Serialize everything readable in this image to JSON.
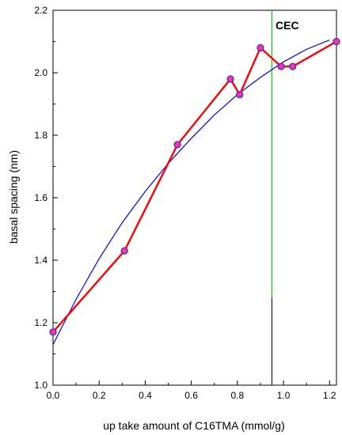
{
  "chart_data": {
    "type": "line",
    "title": "",
    "xlabel": "up take amount of C16TMA (mmol/g)",
    "ylabel": "basal spacing (nm)",
    "xlim": [
      0.0,
      1.23
    ],
    "ylim": [
      1.0,
      2.2
    ],
    "x_ticks": [
      "0.0",
      "0.2",
      "0.4",
      "0.6",
      "0.8",
      "1.0",
      "1.2"
    ],
    "y_ticks": [
      "1.0",
      "1.2",
      "1.4",
      "1.6",
      "1.8",
      "2.0",
      "2.2"
    ],
    "grid": false,
    "legend": "none",
    "series": [
      {
        "kind": "measured",
        "line_color": "#ff0000",
        "marker_fill": "#ff3399",
        "marker_edge": "#3333cc",
        "x": [
          0.0,
          0.31,
          0.54,
          0.77,
          0.81,
          0.9,
          0.99,
          1.04,
          1.23
        ],
        "y": [
          1.17,
          1.43,
          1.77,
          1.98,
          1.93,
          2.08,
          2.02,
          2.02,
          2.1
        ]
      },
      {
        "kind": "fit",
        "line_color": "#0000ff",
        "x": [
          0.0,
          0.1,
          0.2,
          0.3,
          0.4,
          0.5,
          0.6,
          0.7,
          0.8,
          0.9,
          1.0,
          1.1,
          1.2
        ],
        "y": [
          1.13,
          1.275,
          1.405,
          1.52,
          1.62,
          1.71,
          1.79,
          1.865,
          1.93,
          1.985,
          2.035,
          2.075,
          2.105
        ]
      }
    ],
    "annotations": [
      {
        "text": "CEC",
        "x": 0.95,
        "line_color": "#00cc00",
        "lower_line_color": "#000000",
        "color_change_y": 1.28
      }
    ]
  }
}
